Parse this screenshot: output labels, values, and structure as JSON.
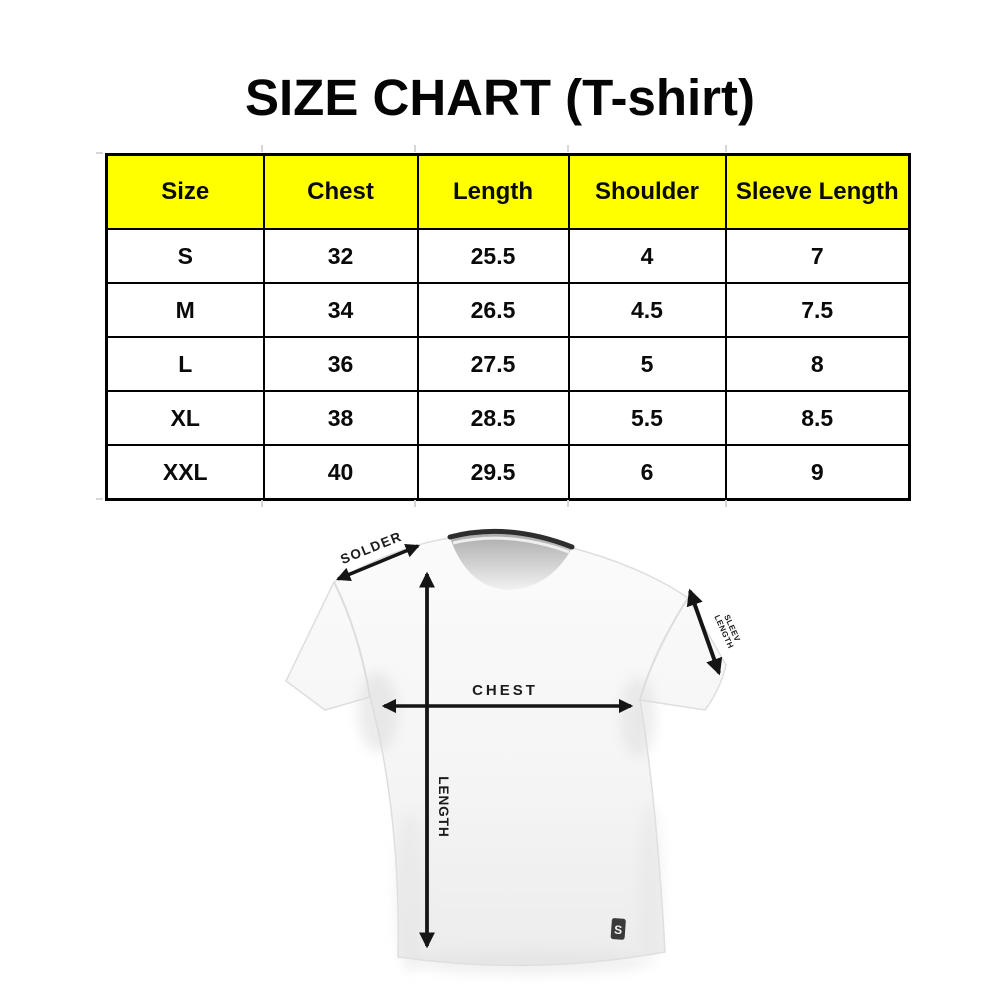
{
  "title": "SIZE CHART (T-shirt)",
  "colors": {
    "header_bg": "#FFFF00",
    "table_border": "#000000",
    "text": "#0a0a0a",
    "arrow": "#151515",
    "collar": "#2e2e2e",
    "shirt_light": "#f7f7f7",
    "shirt_shade": "#e6e6e6"
  },
  "table": {
    "headers": [
      "Size",
      "Chest",
      "Length",
      "Shoulder",
      "Sleeve Length"
    ],
    "rows": [
      [
        "S",
        "32",
        "25.5",
        "4",
        "7"
      ],
      [
        "M",
        "34",
        "26.5",
        "4.5",
        "7.5"
      ],
      [
        "L",
        "36",
        "27.5",
        "5",
        "8"
      ],
      [
        "XL",
        "38",
        "28.5",
        "5.5",
        "8.5"
      ],
      [
        "XXL",
        "40",
        "29.5",
        "6",
        "9"
      ]
    ]
  },
  "diagram": {
    "shoulder_label": "SOLDER",
    "sleeve_label_line1": "SLEEV",
    "sleeve_label_line2": "LENGTH",
    "chest_label": "CHEST",
    "length_label": "LENGTH",
    "logo_letter": "S"
  }
}
